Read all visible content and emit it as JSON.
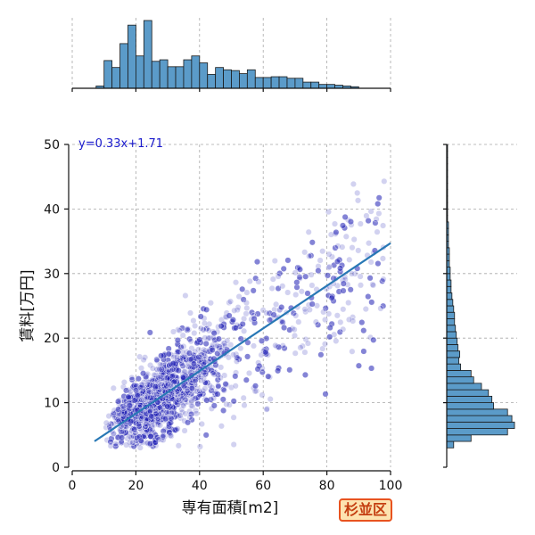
{
  "badge": {
    "label": "杉並区",
    "bg": "#fde3b0",
    "border": "#e8531f",
    "color": "#c43d10"
  },
  "chart_data": {
    "type": "scatter",
    "xlabel": "専有面積[m2]",
    "ylabel": "賃料[万円]",
    "xlim": [
      0,
      100
    ],
    "ylim": [
      0,
      50
    ],
    "xticks": [
      0,
      20,
      40,
      60,
      80,
      100
    ],
    "yticks": [
      0,
      10,
      20,
      30,
      40,
      50
    ],
    "grid": true,
    "regression": {
      "label": "y=0.33x+1.71",
      "slope": 0.33,
      "intercept": 1.71,
      "x_range": [
        7,
        100
      ],
      "color": "#2878b5"
    },
    "point_color": "#1f1fb4",
    "hist_color": "#5b9bc9",
    "marginal_x_hist": {
      "bin_width": 2.5,
      "x_start": 7.5,
      "counts": [
        3,
        36,
        27,
        58,
        82,
        42,
        88,
        35,
        37,
        28,
        28,
        37,
        42,
        33,
        18,
        27,
        24,
        23,
        19,
        24,
        14,
        14,
        15,
        15,
        13,
        13,
        8,
        8,
        5,
        5,
        4,
        3,
        2
      ]
    },
    "marginal_y_hist": {
      "bin_width": 1,
      "y_start": 3,
      "counts": [
        8,
        28,
        70,
        78,
        75,
        70,
        54,
        52,
        48,
        40,
        31,
        28,
        16,
        14,
        15,
        13,
        12,
        11,
        10,
        9,
        9,
        8,
        7,
        6,
        5,
        5,
        4,
        4,
        3,
        3,
        3,
        2,
        2,
        2,
        2,
        1,
        1,
        1,
        1,
        1,
        1,
        1,
        1,
        1,
        1,
        1,
        1
      ]
    }
  }
}
